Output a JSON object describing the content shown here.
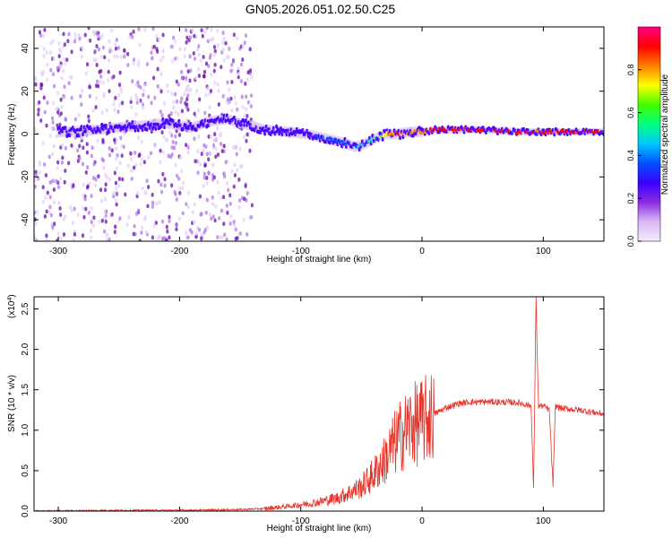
{
  "title": "GN05.2026.051.02.50.C25",
  "chart_data": [
    {
      "type": "heatmap",
      "xlabel": "Height of straight line (km)",
      "ylabel": "Frequency (Hz)",
      "xlim": [
        -320,
        150
      ],
      "ylim": [
        -50,
        50
      ],
      "xticks": [
        -300,
        -200,
        -100,
        0,
        100
      ],
      "yticks": [
        -40,
        -20,
        0,
        20,
        40
      ],
      "ridge": {
        "x": [
          -290,
          -270,
          -250,
          -230,
          -210,
          -190,
          -175,
          -160,
          -150,
          -140,
          -130,
          -110,
          -95,
          -80,
          -65,
          -55,
          -45,
          -38,
          -30,
          -20,
          -10,
          0,
          10,
          50,
          80,
          95,
          110,
          150
        ],
        "frequency": [
          1,
          2,
          3,
          4,
          5,
          3,
          6,
          7,
          5,
          4,
          2,
          1,
          0,
          -2,
          -4,
          -6,
          -4,
          -2,
          0,
          0,
          1,
          1,
          2,
          2,
          1,
          1,
          1,
          1
        ],
        "amplitude": [
          0.25,
          0.25,
          0.25,
          0.3,
          0.3,
          0.25,
          0.3,
          0.3,
          0.3,
          0.3,
          0.3,
          0.3,
          0.3,
          0.35,
          0.4,
          0.4,
          0.45,
          0.55,
          0.75,
          0.9,
          0.8,
          0.85,
          0.9,
          0.95,
          0.95,
          0.85,
          0.9,
          0.9
        ]
      },
      "noise_band_x": [
        -320,
        -140
      ]
    },
    {
      "type": "line",
      "xlabel": "Height of straight line (km)",
      "ylabel": "SNR (10 * v/v)",
      "multiplier": "(x10",
      "multiplier_exp": "4",
      "xlim": [
        -320,
        150
      ],
      "ylim": [
        0,
        2.65
      ],
      "xticks": [
        -300,
        -200,
        -100,
        0,
        100
      ],
      "yticks": [
        "0.0",
        "0.5",
        "1.0",
        "1.5",
        "2.0",
        "2.5"
      ],
      "ytick_values": [
        0,
        0.5,
        1.0,
        1.5,
        2.0,
        2.5
      ],
      "series": [
        {
          "color": "#e8332a",
          "x": [
            -320,
            -250,
            -200,
            -150,
            -130,
            -110,
            -90,
            -70,
            -50,
            -40,
            -30,
            -20,
            -10,
            0,
            10,
            20,
            30,
            40,
            60,
            80,
            90,
            92,
            94,
            96,
            100,
            105,
            108,
            110,
            115,
            130,
            150
          ],
          "y": [
            0.0,
            0.01,
            0.01,
            0.02,
            0.03,
            0.06,
            0.1,
            0.16,
            0.3,
            0.45,
            0.65,
            0.9,
            1.05,
            1.1,
            1.2,
            1.28,
            1.33,
            1.35,
            1.35,
            1.34,
            1.3,
            0.25,
            2.65,
            1.3,
            1.3,
            1.25,
            0.3,
            1.3,
            1.27,
            1.25,
            1.2
          ]
        }
      ]
    }
  ],
  "colorbar": {
    "label": "Normalized spectral amplitude",
    "ticks": [
      "0.0",
      "0.2",
      "0.4",
      "0.6",
      "0.8"
    ],
    "tick_values": [
      0,
      0.2,
      0.4,
      0.6,
      0.8
    ],
    "range": [
      0,
      1
    ],
    "colors": [
      "#f2ecfb",
      "#d9b8f5",
      "#8a2be2",
      "#3a00ff",
      "#0050ff",
      "#00c8ff",
      "#00ff80",
      "#40ff00",
      "#ffff00",
      "#ff8000",
      "#ff0000",
      "#ff0080"
    ]
  }
}
